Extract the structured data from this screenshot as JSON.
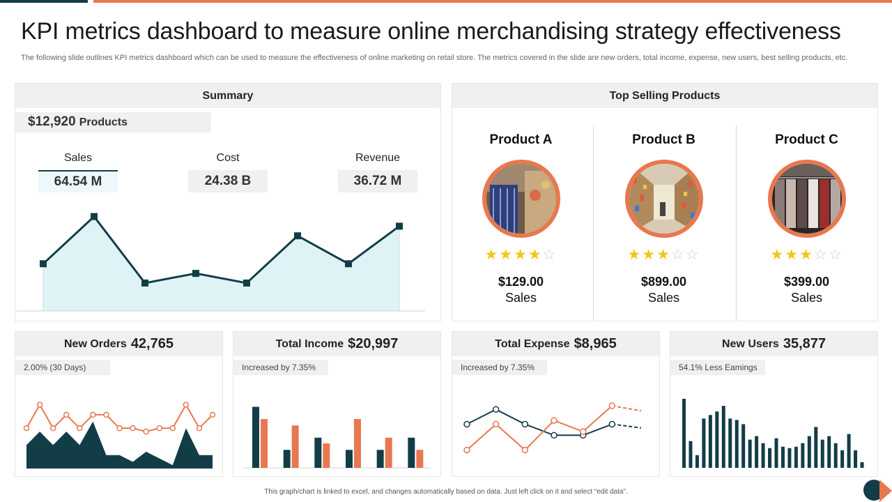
{
  "header": {
    "title": "KPI metrics dashboard to measure online merchandising strategy effectiveness",
    "subtitle": "The following slide outlines KPI metrics dashboard which can be used to measure the effectiveness of online marketing on retail store. The metrics covered in the slide are new orders, total income, expense, new users, best selling products, etc."
  },
  "summary": {
    "title": "Summary",
    "products_amount": "$12,920",
    "products_label": "Products",
    "metrics": [
      {
        "label": "Sales",
        "value": "64.54 M"
      },
      {
        "label": "Cost",
        "value": "24.38 B"
      },
      {
        "label": "Revenue",
        "value": "36.72 M"
      }
    ],
    "chart_data": {
      "type": "area",
      "values": [
        49,
        98,
        29,
        39,
        29,
        78,
        49,
        88
      ],
      "ylim": [
        0,
        110
      ],
      "color": "#123d47",
      "fill": "#dff3f7"
    }
  },
  "top_selling": {
    "title": "Top Selling Products",
    "products": [
      {
        "name": "Product A",
        "rating": 4,
        "price": "$129.00",
        "sales_label": "Sales",
        "image_icon": "shopping-cart-aisle-photo"
      },
      {
        "name": "Product B",
        "rating": 3,
        "price": "$899.00",
        "sales_label": "Sales",
        "image_icon": "store-shelves-photo"
      },
      {
        "name": "Product C",
        "rating": 3,
        "price": "$399.00",
        "sales_label": "Sales",
        "image_icon": "clothing-rack-photo"
      }
    ]
  },
  "kpis": {
    "new_orders": {
      "label": "New Orders",
      "value": "42,765",
      "tag": "2.00% (30 Days)",
      "chart_data": {
        "type": "area",
        "series": [
          {
            "values": [
              35,
              55,
              35,
              55,
              35,
              70,
              20,
              20,
              10,
              25,
              15,
              5,
              60,
              20,
              20
            ],
            "color": "#123d47"
          },
          {
            "values": [
              60,
              95,
              60,
              80,
              60,
              80,
              80,
              60,
              60,
              55,
              60,
              60,
              95,
              60,
              80
            ],
            "color": "#e8784f"
          }
        ],
        "ylim": [
          0,
          110
        ]
      }
    },
    "total_income": {
      "label": "Total Income",
      "value": "$20,997",
      "tag": "Increased by 7.35%",
      "chart_data": {
        "type": "bar",
        "series": [
          {
            "values": [
              85,
              25,
              42,
              25,
              25,
              42
            ],
            "color": "#123d47"
          },
          {
            "values": [
              68,
              59,
              34,
              68,
              42,
              25
            ],
            "color": "#e8784f"
          }
        ],
        "ylim": [
          0,
          100
        ]
      }
    },
    "total_expense": {
      "label": "Total Expense",
      "value": "$8,965",
      "tag": "Increased by 7.35%",
      "chart_data": {
        "type": "line",
        "series": [
          {
            "values": [
              60,
              80,
              60,
              45,
              45,
              60,
              55
            ],
            "color": "#123d47",
            "dashed_last": true
          },
          {
            "values": [
              25,
              60,
              25,
              65,
              50,
              85,
              78
            ],
            "color": "#e8784f",
            "dashed_last": true
          }
        ],
        "ylim": [
          0,
          100
        ]
      }
    },
    "new_users": {
      "label": "New Users",
      "value": "35,877",
      "tag": "54.1% Less Eamings",
      "chart_data": {
        "type": "bar",
        "values": [
          98,
          38,
          18,
          70,
          75,
          80,
          88,
          70,
          68,
          62,
          40,
          45,
          35,
          28,
          42,
          30,
          28,
          30,
          35,
          45,
          58,
          40,
          45,
          35,
          25,
          48,
          25,
          8
        ],
        "color": "#123d47",
        "ylim": [
          0,
          100
        ]
      }
    }
  },
  "footer": {
    "note": "This graph/chart is linked to excel, and changes automatically based on data. Just left click on it and select “edit data”."
  }
}
